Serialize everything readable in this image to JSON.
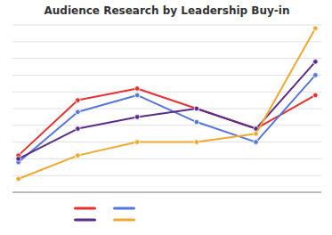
{
  "chart_data": {
    "type": "line",
    "title": "Audience Research by Leadership Buy-in",
    "x": [
      0,
      1,
      2,
      3,
      4,
      5
    ],
    "series": [
      {
        "color": "#e83030",
        "values": [
          22,
          55,
          62,
          50,
          38,
          58
        ]
      },
      {
        "color": "#5577dd",
        "values": [
          18,
          48,
          58,
          42,
          30,
          70
        ]
      },
      {
        "color": "#5a2d8a",
        "values": [
          20,
          38,
          45,
          50,
          38,
          78
        ]
      },
      {
        "color": "#f0a830",
        "values": [
          8,
          22,
          30,
          30,
          35,
          98
        ]
      }
    ],
    "xlim": [
      -0.1,
      5.1
    ],
    "ylim": [
      0,
      100
    ],
    "yticks": [
      0,
      10,
      20,
      30,
      40,
      50,
      60,
      70,
      80,
      90,
      100
    ],
    "grid": true,
    "legend": "bottom",
    "tick_labels": false,
    "marker": "circle"
  }
}
